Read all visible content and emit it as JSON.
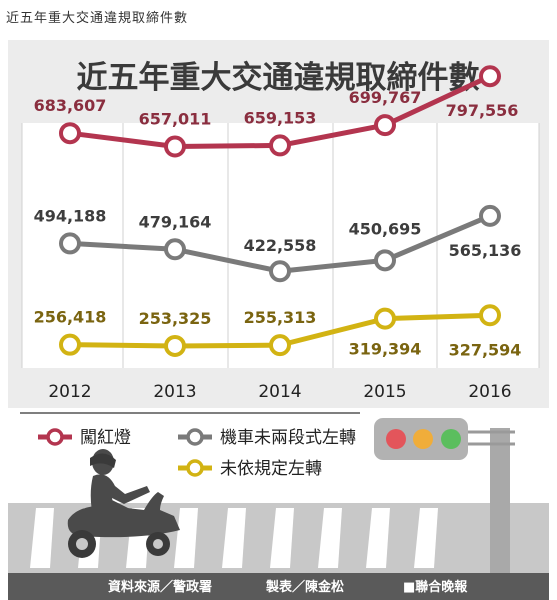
{
  "caption": "近五年重大交通違規取締件數",
  "colors": {
    "red_light": "#b3354f",
    "motorcycle": "#7a7a7a",
    "left_turn": "#d2b313",
    "red_label": "#8a2e3f",
    "gray_label": "#3d3d3d",
    "yellow_label": "#7a6410"
  },
  "icons": [
    "motorcycle-rider-icon",
    "traffic-light-icon"
  ],
  "footer": {
    "source": "資料來源／警政署",
    "producer": "製表／陳金松",
    "publisher": "■聯合晚報"
  },
  "chart_data": {
    "type": "line",
    "title": "近五年重大交通違規取締件數",
    "categories": [
      "2012",
      "2013",
      "2014",
      "2015",
      "2016"
    ],
    "series": [
      {
        "name": "闖紅燈",
        "values": [
          683607,
          657011,
          659153,
          699767,
          797556
        ],
        "labels": [
          "683,607",
          "657,011",
          "659,153",
          "699,767",
          "797,556"
        ]
      },
      {
        "name": "機車未兩段式左轉",
        "values": [
          494188,
          479164,
          422558,
          450695,
          565136
        ],
        "labels": [
          "494,188",
          "479,164",
          "422,558",
          "450,695",
          "565,136"
        ]
      },
      {
        "name": "未依規定左轉",
        "values": [
          256418,
          253325,
          255313,
          319394,
          327594
        ],
        "labels": [
          "256,418",
          "253,325",
          "255,313",
          "319,394",
          "327,594"
        ]
      }
    ],
    "grid": true,
    "legend_position": "bottom-left"
  }
}
